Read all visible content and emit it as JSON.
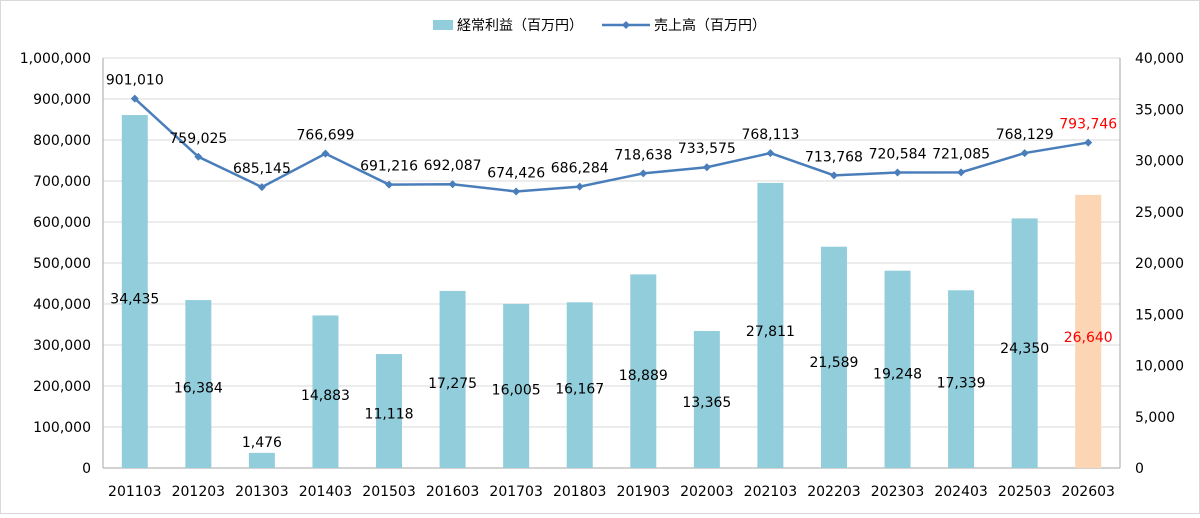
{
  "chart_data": {
    "type": "bar",
    "categories": [
      "201103",
      "201203",
      "201303",
      "201403",
      "201503",
      "201603",
      "201703",
      "201803",
      "201903",
      "202003",
      "202103",
      "202203",
      "202303",
      "202403",
      "202503",
      "202603"
    ],
    "series": [
      {
        "name": "経常利益（百万円）",
        "chart": "bar",
        "axis": "right",
        "values": [
          34435,
          16384,
          1476,
          14883,
          11118,
          17275,
          16005,
          16167,
          18889,
          13365,
          27811,
          21589,
          19248,
          17339,
          24350,
          26640
        ],
        "labels": [
          "34,435",
          "16,384",
          "1,476",
          "14,883",
          "11,118",
          "17,275",
          "16,005",
          "16,167",
          "18,889",
          "13,365",
          "27,811",
          "21,589",
          "19,248",
          "17,339",
          "24,350",
          "26,640"
        ],
        "color": "#92cddc",
        "highlight_color": "#fcd5b5",
        "highlight_index": 15
      },
      {
        "name": "売上高（百万円）",
        "chart": "line",
        "axis": "left",
        "values": [
          901010,
          759025,
          685145,
          766699,
          691216,
          692087,
          674426,
          686284,
          718638,
          733575,
          768113,
          713768,
          720584,
          721085,
          768129,
          793746
        ],
        "labels": [
          "901,010",
          "759,025",
          "685,145",
          "766,699",
          "691,216",
          "692,087",
          "674,426",
          "686,284",
          "718,638",
          "733,575",
          "768,113",
          "713,768",
          "720,584",
          "721,085",
          "768,129",
          "793,746"
        ],
        "color": "#4a7ebb",
        "label_highlight_color": "#ff0000",
        "highlight_index": 15
      }
    ],
    "y_left": {
      "range": [
        0,
        1000000
      ],
      "ticks": [
        "0",
        "100,000",
        "200,000",
        "300,000",
        "400,000",
        "500,000",
        "600,000",
        "700,000",
        "800,000",
        "900,000",
        "1,000,000"
      ]
    },
    "y_right": {
      "range": [
        0,
        40000
      ],
      "ticks": [
        "0",
        "5,000",
        "10,000",
        "15,000",
        "20,000",
        "25,000",
        "30,000",
        "35,000",
        "40,000"
      ]
    },
    "grid": true,
    "legend_position": "top",
    "title": "",
    "xlabel": "",
    "ylabel": ""
  }
}
